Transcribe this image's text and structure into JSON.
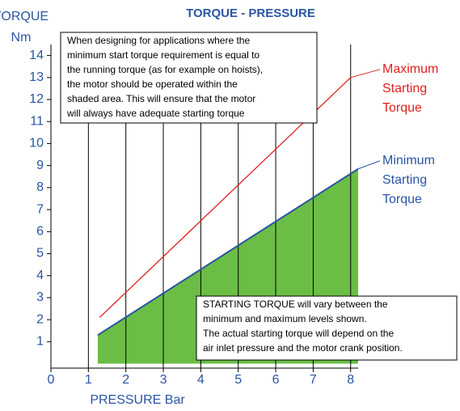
{
  "chart_data": {
    "type": "line",
    "title": "TORQUE - PRESSURE",
    "y_label": [
      "TORQUE",
      "Nm"
    ],
    "x_label": "PRESSURE Bar",
    "xlim": [
      0,
      8.2
    ],
    "ylim": [
      -0.2,
      14.5
    ],
    "xticks": [
      0,
      1,
      2,
      3,
      4,
      5,
      6,
      7,
      8
    ],
    "yticks": [
      1,
      2,
      3,
      4,
      5,
      6,
      7,
      8,
      9,
      10,
      11,
      12,
      13,
      14
    ],
    "grid": true,
    "series": [
      {
        "name": [
          "Maximum",
          "Starting",
          "Torque"
        ],
        "color": "#e02020",
        "x": [
          1.3,
          8.0
        ],
        "values": [
          2.1,
          13.0
        ],
        "fill": false
      },
      {
        "name": [
          "Minimum",
          "Starting",
          "Torque"
        ],
        "color": "#2a55a3",
        "x": [
          1.25,
          8.2
        ],
        "values": [
          1.3,
          8.85
        ],
        "fill": true,
        "fill_color": "#6bbd45"
      }
    ],
    "annotations": [
      [
        "When designing for applications where the",
        "minimum start torque requirement is equal to",
        "the running torque (as for example on hoists),",
        "the motor should be operated within the",
        "shaded area. This will ensure that the motor",
        "will always have adequate starting torque"
      ],
      [
        "STARTING TORQUE will vary between the",
        "minimum and maximum levels shown.",
        "The actual starting torque will depend on the",
        "air inlet pressure and the motor crank position."
      ]
    ]
  }
}
